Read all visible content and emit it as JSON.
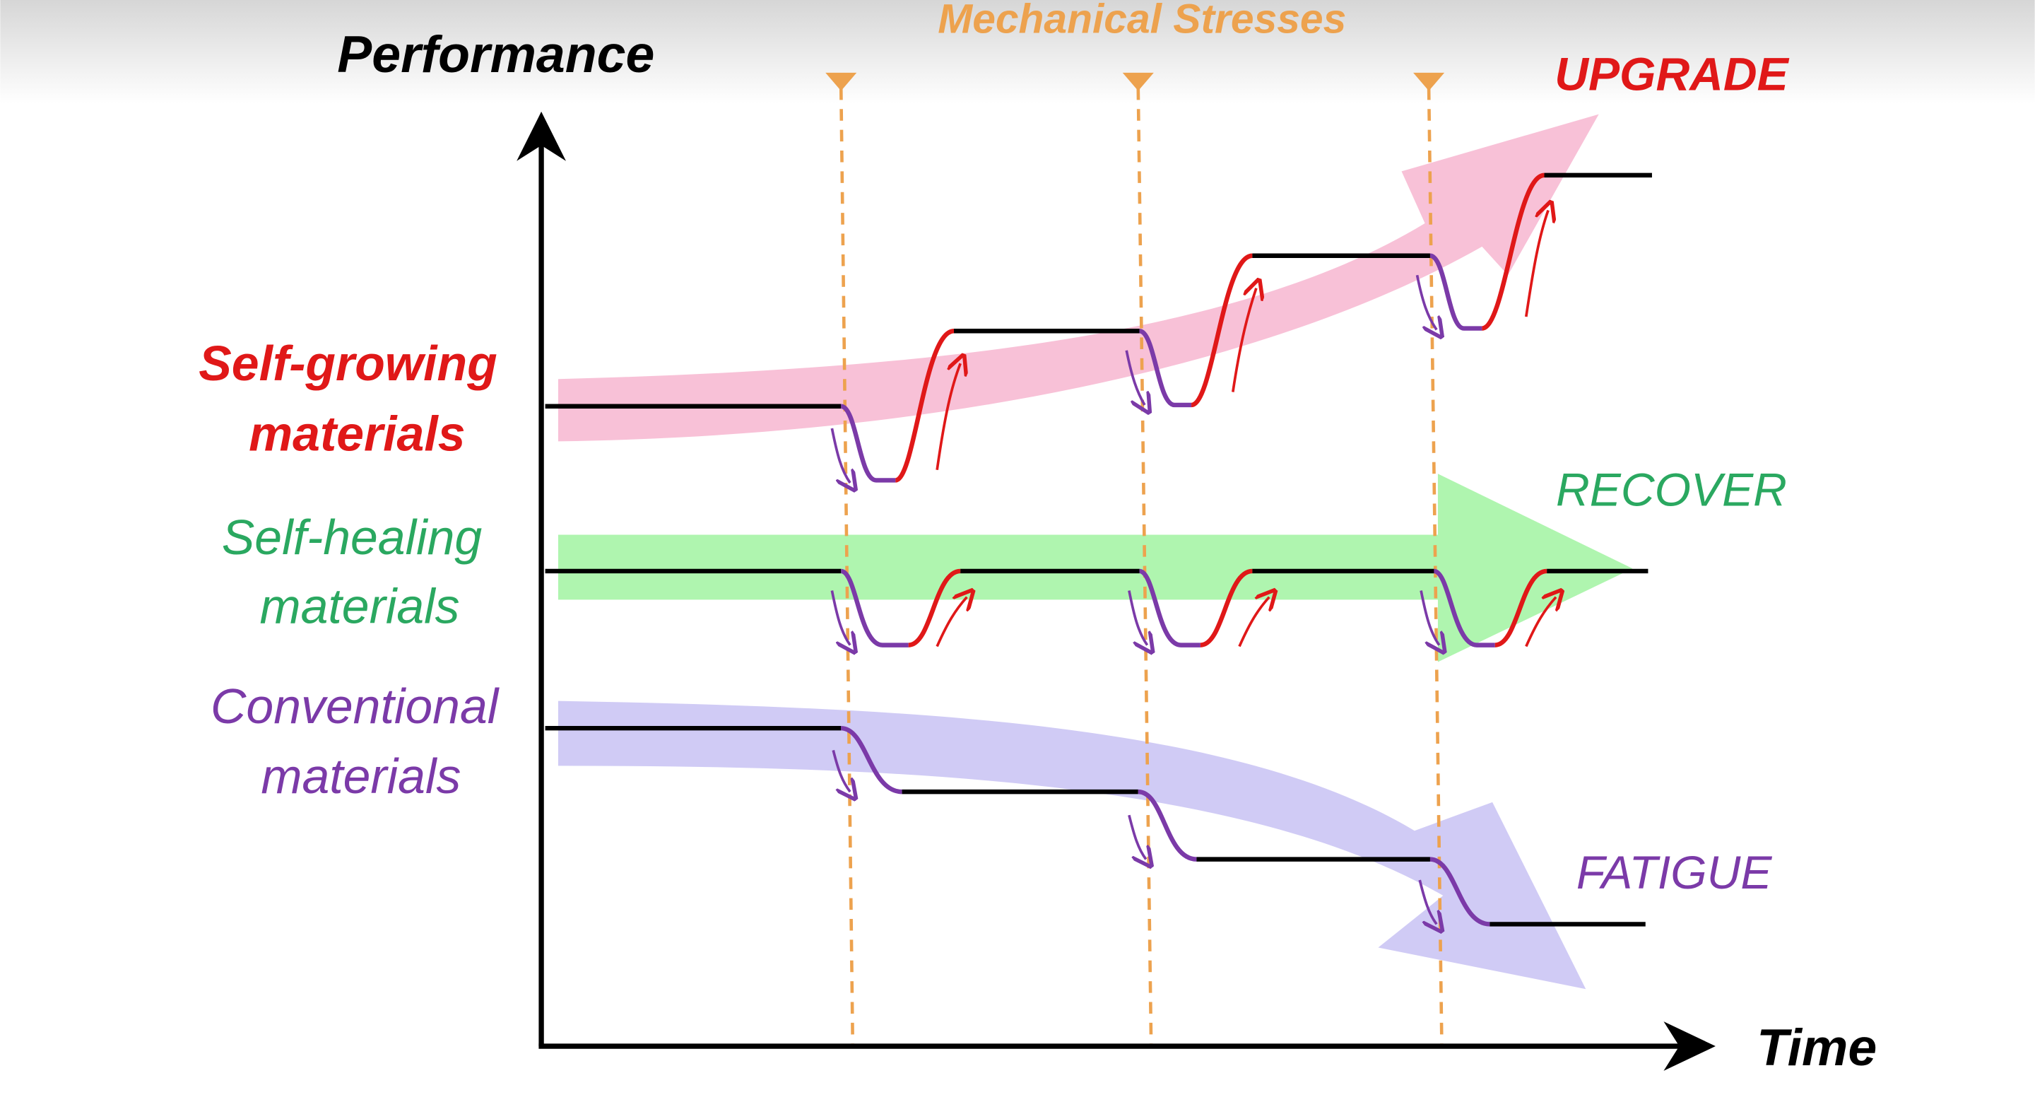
{
  "axes": {
    "y_label": "Performance",
    "x_label": "Time"
  },
  "stress_label": "Mechanical Stresses",
  "outcomes": {
    "upgrade": "UPGRADE",
    "recover": "RECOVER",
    "fatigue": "FATIGUE"
  },
  "materials": {
    "self_growing": [
      "Self-growing",
      "materials"
    ],
    "self_healing": [
      "Self-healing",
      "materials"
    ],
    "conventional": [
      "Conventional",
      "materials"
    ]
  }
}
